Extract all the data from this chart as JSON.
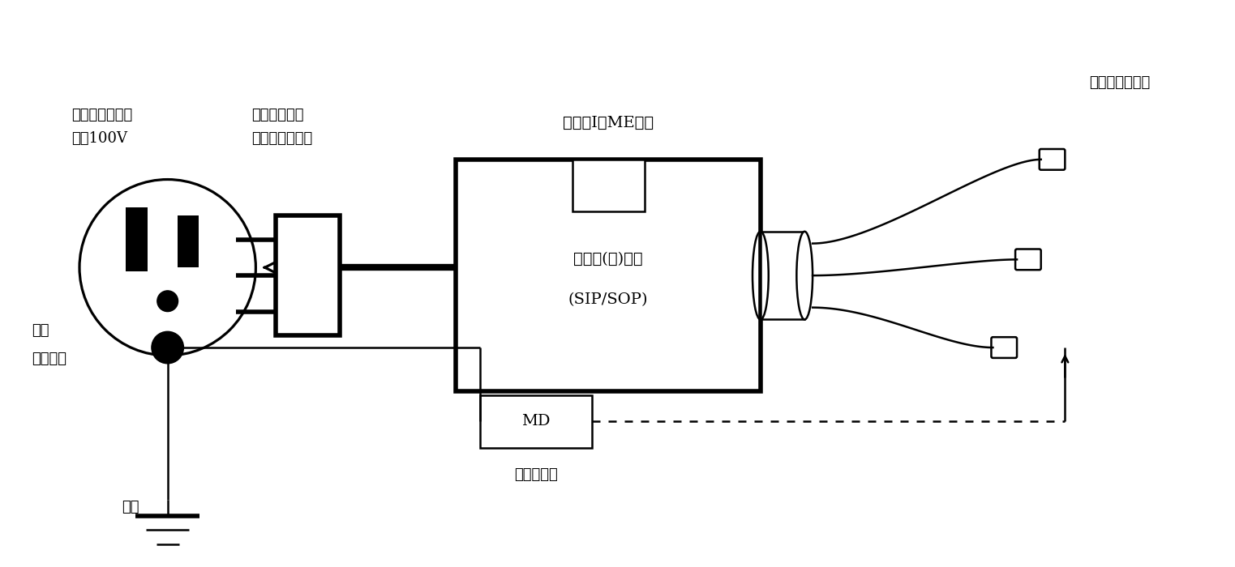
{
  "bg_color": "#ffffff",
  "text_color": "#000000",
  "labels": {
    "outlet_line1": "医用コンセント",
    "outlet_line2": "電源100V",
    "plug_line1": "２極接地極付",
    "plug_line2": "医用差込プラグ",
    "me_device": "クラスⅠのME機器",
    "sip_sop_line1": "信号入(出)力部",
    "sip_sop_line2": "(SIP/SOP)",
    "patient_cord": "患者誘導コード",
    "wall_ground_line1": "壁面",
    "wall_ground_line2": "接地端子",
    "ground": "接地",
    "md_line1": "MD",
    "md_line2": "測定用器具"
  }
}
